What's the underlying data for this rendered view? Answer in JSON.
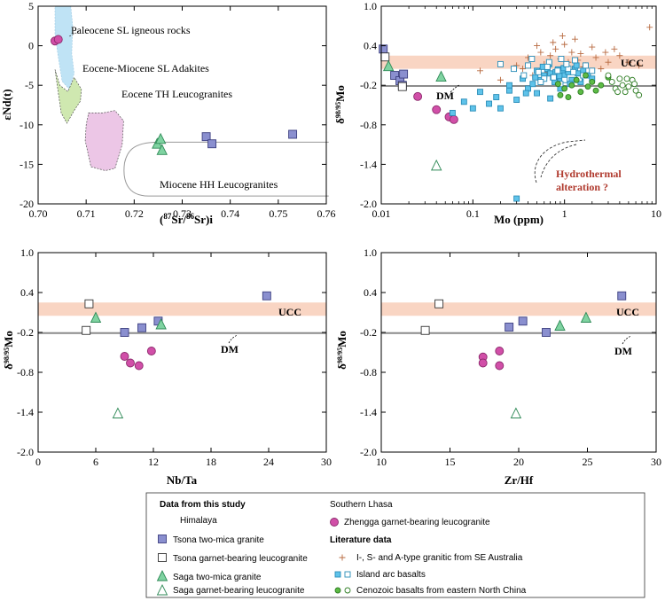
{
  "chart_data": [
    {
      "type": "scatter",
      "id": "p1",
      "xlabel": "(87Sr/86Sr)i",
      "ylabel": "εNd(t)",
      "xlim": [
        0.7,
        0.76
      ],
      "ylim": [
        -20,
        5
      ],
      "xticks": [
        "0.70",
        "0.71",
        "0.72",
        "0.73",
        "0.74",
        "0.75",
        "0.76"
      ],
      "yticks": [
        "5",
        "0",
        "-5",
        "-10",
        "-15",
        "-20"
      ],
      "regions": [
        {
          "name": "Paleocene SL igneous rocks",
          "color": "#bfe3f5"
        },
        {
          "name": "Eocene-Miocene SL Adakites",
          "color": "#cfe8b0"
        },
        {
          "name": "Eocene TH Leucogranites",
          "color": "#ecc6e6"
        },
        {
          "name": "Miocene HH Leucogranites",
          "color": "none"
        }
      ],
      "series": [
        {
          "key": "tsona_two_mica",
          "x": [
            0.735,
            0.7362,
            0.753
          ],
          "y": [
            -11.5,
            -12.4,
            -11.2
          ]
        },
        {
          "key": "saga_two_mica",
          "x": [
            0.7248,
            0.7255,
            0.7258
          ],
          "y": [
            -12.4,
            -11.8,
            -13.2
          ]
        },
        {
          "key": "zhengga",
          "x": [
            0.7035,
            0.7042
          ],
          "y": [
            0.6,
            0.8
          ]
        }
      ]
    },
    {
      "type": "scatter",
      "id": "p2",
      "xlabel": "Mo (ppm)",
      "ylabel": "δ98/95Mo",
      "xscale": "log",
      "xlim": [
        0.01,
        10
      ],
      "ylim": [
        -2.0,
        1.0
      ],
      "xticks": [
        "0.01",
        "0.1",
        "1",
        "10"
      ],
      "yticks": [
        "1.0",
        "0.4",
        "-0.2",
        "-0.8",
        "-1.4",
        "-2.0"
      ],
      "ucc_band": [
        0.05,
        0.25
      ],
      "dm_line": -0.21,
      "annotations": [
        "UCC",
        "DM",
        "Hydrothermal",
        "alteration ?"
      ],
      "series": [
        {
          "key": "tsona_two_mica",
          "x": [
            0.0105,
            0.014,
            0.016,
            0.0175,
            0.017
          ],
          "y": [
            0.35,
            -0.05,
            -0.13,
            -0.03,
            -0.2
          ]
        },
        {
          "key": "tsona_garnet",
          "x": [
            0.011,
            0.017
          ],
          "y": [
            0.23,
            -0.22
          ]
        },
        {
          "key": "saga_two_mica",
          "x": [
            0.012,
            0.045
          ],
          "y": [
            0.09,
            -0.07
          ]
        },
        {
          "key": "saga_garnet",
          "x": [
            0.04
          ],
          "y": [
            -1.42
          ]
        },
        {
          "key": "zhengga",
          "x": [
            0.025,
            0.04,
            0.055,
            0.062
          ],
          "y": [
            -0.37,
            -0.57,
            -0.68,
            -0.72
          ]
        },
        {
          "key": "i_s_a_granitic",
          "x": [
            0.12,
            0.2,
            0.35,
            0.4,
            0.5,
            0.55,
            0.6,
            0.7,
            0.75,
            0.8,
            0.9,
            1.0,
            1.1,
            1.2,
            1.3,
            1.5,
            1.7,
            2.0,
            2.2,
            2.5,
            3.0,
            3.5,
            4.0,
            5.0,
            6.5,
            8.5,
            0.45,
            0.65,
            0.85,
            1.4,
            1.9,
            0.3,
            0.95,
            1.6,
            2.8
          ],
          "y": [
            0.02,
            -0.12,
            0.05,
            0.22,
            0.4,
            0.3,
            0.12,
            0.25,
            0.45,
            0.35,
            0.2,
            0.42,
            0.15,
            0.3,
            0.5,
            0.28,
            0.1,
            0.38,
            0.22,
            0.05,
            0.15,
            0.35,
            0.25,
            0.15,
            0.1,
            0.68,
            -0.05,
            0.0,
            -0.1,
            0.18,
            -0.02,
            0.1,
            0.55,
            0.08,
            0.3
          ]
        },
        {
          "key": "island_arc_filled",
          "x": [
            0.06,
            0.08,
            0.1,
            0.12,
            0.15,
            0.18,
            0.2,
            0.25,
            0.3,
            0.35,
            0.4,
            0.45,
            0.5,
            0.55,
            0.6,
            0.65,
            0.7,
            0.75,
            0.8,
            0.85,
            0.9,
            0.95,
            1.0,
            1.1,
            1.2,
            1.3,
            1.4,
            1.5,
            1.6,
            1.8,
            2.0,
            0.25,
            0.38,
            0.48,
            0.58,
            0.68,
            0.78,
            0.88,
            0.98,
            1.15,
            1.35,
            0.7,
            0.9,
            0.5,
            0.3
          ],
          "y": [
            -0.62,
            -0.45,
            -0.55,
            -0.3,
            -0.48,
            -0.38,
            -0.55,
            -0.28,
            -0.42,
            -0.1,
            -0.25,
            -0.18,
            0.02,
            -0.12,
            -0.05,
            0.05,
            -0.02,
            -0.08,
            0.0,
            0.04,
            -0.1,
            0.02,
            -0.05,
            0.0,
            -0.12,
            0.05,
            -0.02,
            -0.15,
            0.02,
            -0.05,
            -0.1,
            -0.2,
            -0.32,
            -0.08,
            0.08,
            0.12,
            -0.15,
            -0.06,
            0.06,
            -0.18,
            0.1,
            -0.4,
            -0.25,
            -0.32,
            -1.92
          ]
        },
        {
          "key": "island_arc_open",
          "x": [
            0.2,
            0.28,
            0.36,
            0.44,
            0.52,
            0.6,
            0.68,
            0.76,
            0.84,
            0.92,
            1.0,
            1.1,
            1.25,
            1.45,
            1.7,
            2.0,
            0.9,
            0.65,
            1.3,
            0.55,
            0.4,
            1.05,
            1.6
          ],
          "y": [
            0.12,
            0.05,
            -0.05,
            0.2,
            0.0,
            -0.1,
            0.15,
            -0.08,
            0.02,
            0.2,
            -0.12,
            0.05,
            0.0,
            -0.1,
            0.1,
            0.02,
            -0.18,
            0.08,
            0.18,
            -0.15,
            0.1,
            0.12,
            -0.05
          ]
        },
        {
          "key": "cenozoic_filled",
          "x": [
            0.9,
            1.0,
            1.2,
            1.5,
            1.8,
            2.0,
            2.5,
            3.0,
            1.1,
            1.35,
            2.2,
            0.85,
            1.7
          ],
          "y": [
            -0.35,
            -0.25,
            -0.2,
            -0.3,
            -0.22,
            -0.15,
            -0.2,
            -0.08,
            -0.38,
            -0.12,
            -0.28,
            -0.18,
            -0.05
          ]
        },
        {
          "key": "cenozoic_open",
          "x": [
            3.0,
            3.3,
            3.6,
            4.0,
            4.3,
            4.6,
            5.0,
            5.5,
            6.0,
            6.5,
            3.8,
            4.8,
            5.8
          ],
          "y": [
            -0.05,
            -0.15,
            -0.25,
            -0.1,
            -0.2,
            -0.3,
            -0.22,
            -0.12,
            -0.28,
            -0.35,
            -0.3,
            -0.1,
            -0.18
          ]
        }
      ]
    },
    {
      "type": "scatter",
      "id": "p3",
      "xlabel": "Nb/Ta",
      "ylabel": "δ98/95Mo",
      "xlim": [
        0,
        30
      ],
      "ylim": [
        -2.0,
        1.0
      ],
      "xticks": [
        "0",
        "6",
        "12",
        "18",
        "24",
        "30"
      ],
      "yticks": [
        "1.0",
        "0.4",
        "-0.2",
        "-0.8",
        "-1.4",
        "-2.0"
      ],
      "ucc_band": [
        0.05,
        0.25
      ],
      "dm_line": -0.21,
      "annotations": [
        "UCC",
        "DM"
      ],
      "series": [
        {
          "key": "tsona_two_mica",
          "x": [
            23.8,
            12.5,
            10.8,
            9.0
          ],
          "y": [
            0.35,
            -0.03,
            -0.13,
            -0.2
          ]
        },
        {
          "key": "tsona_garnet",
          "x": [
            5.3,
            5.0
          ],
          "y": [
            0.23,
            -0.17
          ]
        },
        {
          "key": "saga_two_mica",
          "x": [
            6.0,
            12.8
          ],
          "y": [
            0.02,
            -0.08
          ]
        },
        {
          "key": "saga_garnet",
          "x": [
            8.3
          ],
          "y": [
            -1.42
          ]
        },
        {
          "key": "zhengga",
          "x": [
            9.0,
            9.6,
            10.5,
            11.8
          ],
          "y": [
            -0.56,
            -0.66,
            -0.7,
            -0.48
          ]
        }
      ]
    },
    {
      "type": "scatter",
      "id": "p4",
      "xlabel": "Zr/Hf",
      "ylabel": "δ98/95Mo",
      "xlim": [
        10,
        30
      ],
      "ylim": [
        -2.0,
        1.0
      ],
      "xticks": [
        "10",
        "15",
        "20",
        "25",
        "30"
      ],
      "yticks": [
        "1.0",
        "0.4",
        "-0.2",
        "-0.8",
        "-1.4",
        "-2.0"
      ],
      "ucc_band": [
        0.05,
        0.25
      ],
      "dm_line": -0.21,
      "annotations": [
        "UCC",
        "DM"
      ],
      "series": [
        {
          "key": "tsona_two_mica",
          "x": [
            27.5,
            20.3,
            19.3,
            22.0
          ],
          "y": [
            0.35,
            -0.03,
            -0.12,
            -0.2
          ]
        },
        {
          "key": "tsona_garnet",
          "x": [
            14.2,
            13.2
          ],
          "y": [
            0.23,
            -0.17
          ]
        },
        {
          "key": "saga_two_mica",
          "x": [
            24.9,
            23.0
          ],
          "y": [
            0.02,
            -0.1
          ]
        },
        {
          "key": "saga_garnet",
          "x": [
            19.8
          ],
          "y": [
            -1.42
          ]
        },
        {
          "key": "zhengga",
          "x": [
            17.4,
            17.4,
            18.6,
            18.6
          ],
          "y": [
            -0.57,
            -0.66,
            -0.48,
            -0.7
          ]
        }
      ]
    }
  ],
  "legend": {
    "this_study_title": "Data from this study",
    "himalaya_title": "Himalaya",
    "southern_lhasa_title": "Southern Lhasa",
    "literature_title": "Literature data",
    "items": {
      "tsona_two_mica": "Tsona two-mica granite",
      "tsona_garnet": "Tsona garnet-bearing leucogranite",
      "saga_two_mica": "Saga two-mica granite",
      "saga_garnet": "Saga garnet-bearing leucogranite",
      "zhengga": "Zhengga garnet-bearing leucogranite",
      "i_s_a_granitic": "I-, S- and A-type granitic from SE Australia",
      "island_arc": "Island arc basalts",
      "cenozoic": "Cenozoic basalts from eastern North China"
    }
  },
  "colors": {
    "tsona_fill": "#8a8fcf",
    "tsona_stroke": "#3c3f80",
    "saga_fill": "#7fd3a1",
    "saga_stroke": "#2f8a57",
    "zhengga_fill": "#d14fa8",
    "zhengga_stroke": "#8c2a6c",
    "plus": "#b86a40",
    "island_fill": "#5fc3ea",
    "island_stroke": "#2a8db8",
    "cenozoic_fill": "#5dbb45",
    "cenozoic_stroke": "#2e7d23",
    "ucc_band": "#f9d5c3",
    "dm_line": "#8c8c8c",
    "hydro_text": "#b03a2e"
  }
}
